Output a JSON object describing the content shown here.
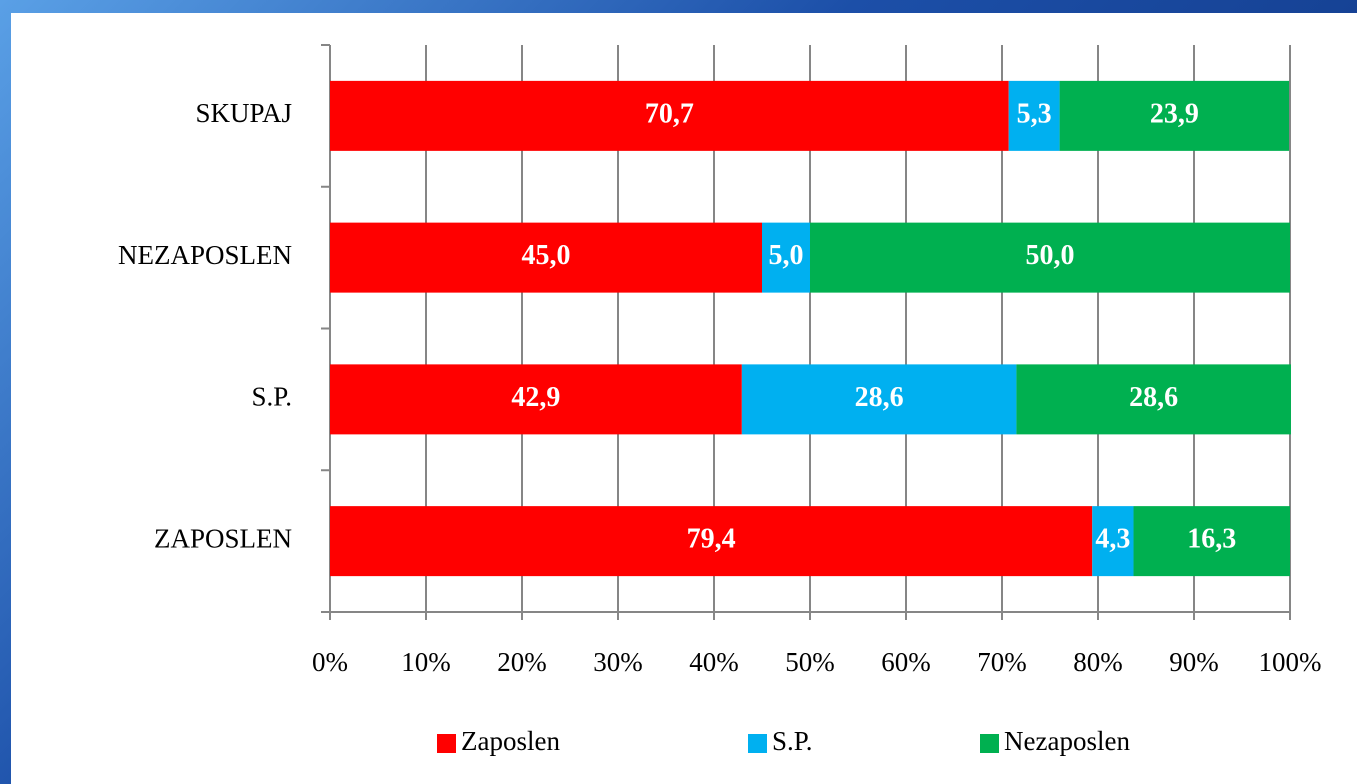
{
  "chart_data": {
    "type": "stacked-bar-horizontal",
    "categories": [
      "SKUPAJ",
      "NEZAPOSLEN",
      "S.P.",
      "ZAPOSLEN"
    ],
    "series": [
      {
        "name": "Zaposlen",
        "color": "#ff0000",
        "values": [
          70.7,
          45.0,
          42.9,
          79.4
        ],
        "value_labels": [
          "70,7",
          "45,0",
          "42,9",
          "79,4"
        ]
      },
      {
        "name": "S.P.",
        "color": "#00b0f0",
        "values": [
          5.3,
          5.0,
          28.6,
          4.3
        ],
        "value_labels": [
          "5,3",
          "5,0",
          "28,6",
          "4,3"
        ]
      },
      {
        "name": "Nezaposlen",
        "color": "#00b050",
        "values": [
          23.9,
          50.0,
          28.6,
          16.3
        ],
        "value_labels": [
          "23,9",
          "50,0",
          "28,6",
          "16,3"
        ]
      }
    ],
    "xlim": [
      0,
      100
    ],
    "xticks": [
      {
        "value": 0,
        "label": "0%"
      },
      {
        "value": 10,
        "label": "10%"
      },
      {
        "value": 20,
        "label": "20%"
      },
      {
        "value": 30,
        "label": "30%"
      },
      {
        "value": 40,
        "label": "40%"
      },
      {
        "value": 50,
        "label": "50%"
      },
      {
        "value": 60,
        "label": "60%"
      },
      {
        "value": 70,
        "label": "70%"
      },
      {
        "value": 80,
        "label": "80%"
      },
      {
        "value": 90,
        "label": "90%"
      },
      {
        "value": 100,
        "label": "100%"
      }
    ],
    "grid": true,
    "legend": "bottom"
  }
}
